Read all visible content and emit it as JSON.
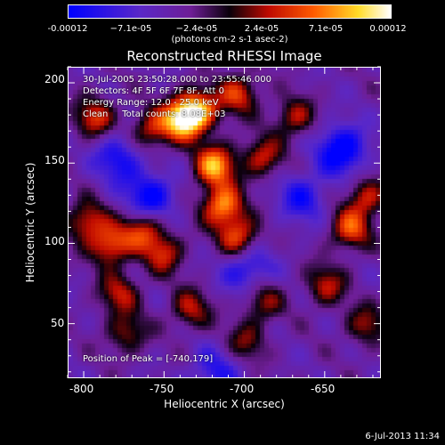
{
  "chart_data": {
    "type": "heatmap",
    "title": "Reconstructed RHESSI Image",
    "xlabel": "Heliocentric X (arcsec)",
    "ylabel": "Heliocentric Y (arcsec)",
    "xlim": [
      -810,
      -615
    ],
    "ylim": [
      16,
      210
    ],
    "x_ticks": [
      -800,
      -750,
      -700,
      -650
    ],
    "y_ticks": [
      50,
      100,
      150,
      200
    ],
    "colorbar": {
      "min": -0.00012,
      "max": 0.00012,
      "tick_labels": [
        "-0.00012",
        "−7.1e-05",
        "−2.4e-05",
        "2.4e-05",
        "7.1e-05",
        "0.00012"
      ],
      "tick_values": [
        -0.00012,
        -7.1e-05,
        -2.4e-05,
        2.4e-05,
        7.1e-05,
        0.00012
      ],
      "units": "(photons cm-2 s-1 asec-2)"
    },
    "annotations": {
      "time_range": "30-Jul-2005 23:50:28.000 to 23:55:46.000",
      "detectors": "Detectors: 4F 5F 6F 7F 8F, Att 0",
      "energy_range": "Energy Range: 12.0 - 25.0 keV",
      "clean": "Clean     Total counts: 8.08E+03",
      "peak": "Position of Peak = [-740,179]"
    },
    "peak_position": [
      -740,
      179
    ],
    "bright_regions": [
      {
        "x": -705,
        "y": 195,
        "level": 0.6
      },
      {
        "x": -730,
        "y": 185,
        "level": 0.8
      },
      {
        "x": -740,
        "y": 179,
        "level": 1.0
      },
      {
        "x": -760,
        "y": 172,
        "level": 0.55
      },
      {
        "x": -795,
        "y": 180,
        "level": 0.6
      },
      {
        "x": -720,
        "y": 150,
        "level": 0.9
      },
      {
        "x": -715,
        "y": 125,
        "level": 0.85
      },
      {
        "x": -705,
        "y": 105,
        "level": 0.7
      },
      {
        "x": -785,
        "y": 100,
        "level": 0.7
      },
      {
        "x": -800,
        "y": 115,
        "level": 0.6
      },
      {
        "x": -765,
        "y": 110,
        "level": 0.6
      },
      {
        "x": -752,
        "y": 95,
        "level": 0.55
      },
      {
        "x": -690,
        "y": 155,
        "level": 0.55
      },
      {
        "x": -670,
        "y": 180,
        "level": 0.5
      },
      {
        "x": -635,
        "y": 110,
        "level": 0.65
      },
      {
        "x": -625,
        "y": 130,
        "level": 0.55
      },
      {
        "x": -650,
        "y": 75,
        "level": 0.5
      },
      {
        "x": -690,
        "y": 65,
        "level": 0.45
      },
      {
        "x": -735,
        "y": 60,
        "level": 0.5
      },
      {
        "x": -780,
        "y": 70,
        "level": 0.5
      },
      {
        "x": -775,
        "y": 45,
        "level": 0.45
      },
      {
        "x": -625,
        "y": 50,
        "level": 0.45
      },
      {
        "x": -700,
        "y": 40,
        "level": 0.4
      }
    ],
    "dim_regions": [
      {
        "x": -760,
        "y": 130,
        "level": -0.6
      },
      {
        "x": -640,
        "y": 160,
        "level": -0.7
      },
      {
        "x": -780,
        "y": 155,
        "level": -0.5
      },
      {
        "x": -700,
        "y": 85,
        "level": -0.5
      },
      {
        "x": -665,
        "y": 130,
        "level": -0.45
      },
      {
        "x": -720,
        "y": 20,
        "level": -0.4
      }
    ]
  },
  "timestamp": "6-Jul-2013 11:34"
}
